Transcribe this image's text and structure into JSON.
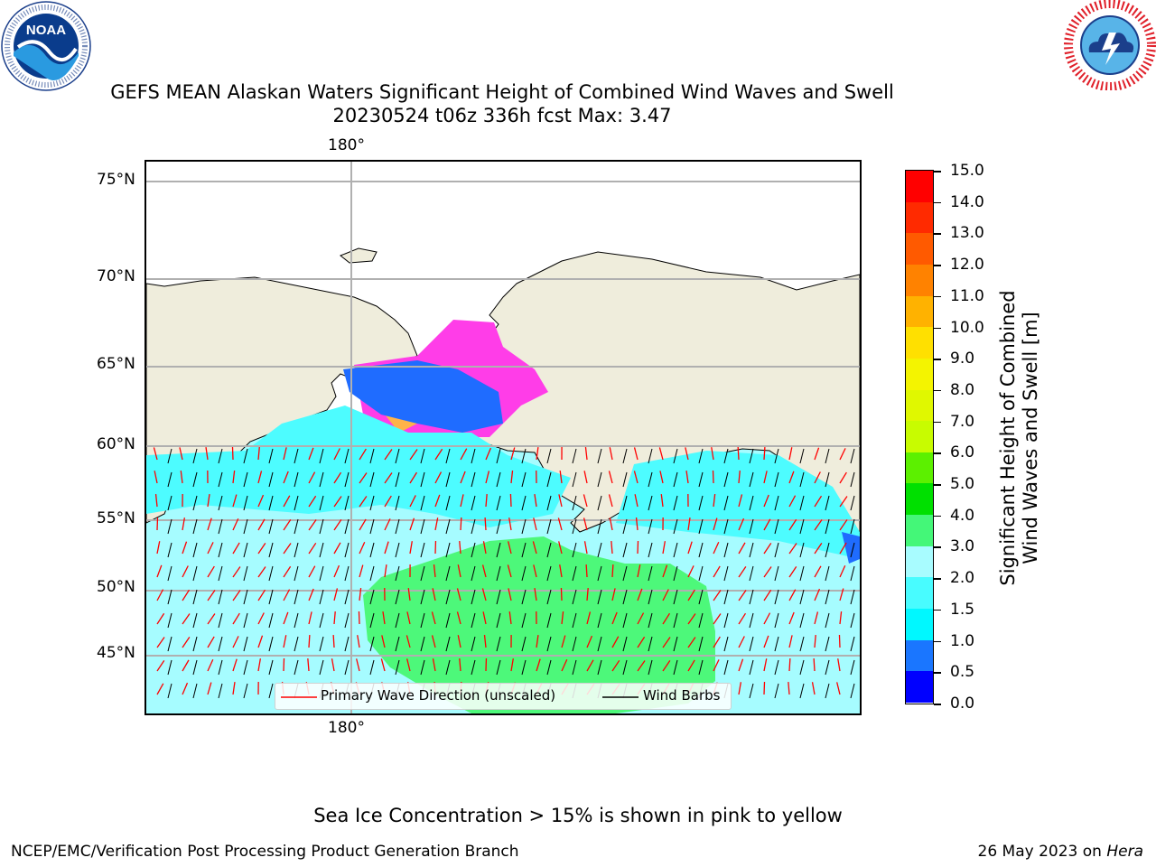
{
  "header": {
    "title_line1": "GEFS MEAN Alaskan Waters Significant Height of Combined Wind Waves and Swell",
    "title_line2": "20230524 t06z 336h fcst   Max: 3.47"
  },
  "logos": {
    "left": {
      "name": "noaa-logo",
      "text": "NOAA",
      "ring_text": "NATIONAL OCEANIC AND ATMOSPHERIC ADMINISTRATION · U.S. DEPARTMENT OF COMMERCE"
    },
    "right": {
      "name": "nws-logo",
      "ring_text": "NATIONAL WEATHER SERVICE"
    }
  },
  "map": {
    "lat_labels": [
      "75°N",
      "70°N",
      "65°N",
      "60°N",
      "55°N",
      "50°N",
      "45°N"
    ],
    "lon_label_top": "180°",
    "lon_label_bottom": "180°",
    "colors": {
      "land": "#efeddc",
      "ocean_low": "#a6fcff",
      "ocean_mid": "#4dfcff",
      "swell_3": "#4df87a",
      "ice": "#ff3de8",
      "deep_blue": "#1f6cff"
    },
    "legend": {
      "wave_label": "Primary Wave Direction (unscaled)",
      "wind_label": "Wind Barbs",
      "wave_color": "#ff0000",
      "wind_color": "#000000"
    }
  },
  "colorbar": {
    "label_line1": "Significant Height of Combined",
    "label_line2": "Wind Waves and Swell [m]",
    "ticks": [
      "15.0",
      "14.0",
      "13.0",
      "12.0",
      "11.0",
      "10.0",
      "9.0",
      "8.0",
      "7.0",
      "6.0",
      "5.0",
      "4.0",
      "3.0",
      "2.0",
      "1.5",
      "1.0",
      "0.5",
      "0.0"
    ],
    "colors": [
      "#ff0000",
      "#ff2a00",
      "#ff5a00",
      "#ff8200",
      "#ffb200",
      "#ffe000",
      "#f4f400",
      "#e0f800",
      "#c8fc00",
      "#5cf000",
      "#00e000",
      "#44f778",
      "#a8fcff",
      "#48fcff",
      "#00f8ff",
      "#1a76ff",
      "#0000ff"
    ]
  },
  "footer": {
    "note": "Sea Ice Concentration > 15% is shown in pink to yellow",
    "credit": "NCEP/EMC/Verification Post Processing Product Generation Branch",
    "date": "26 May 2023 on",
    "host": "Hera"
  }
}
